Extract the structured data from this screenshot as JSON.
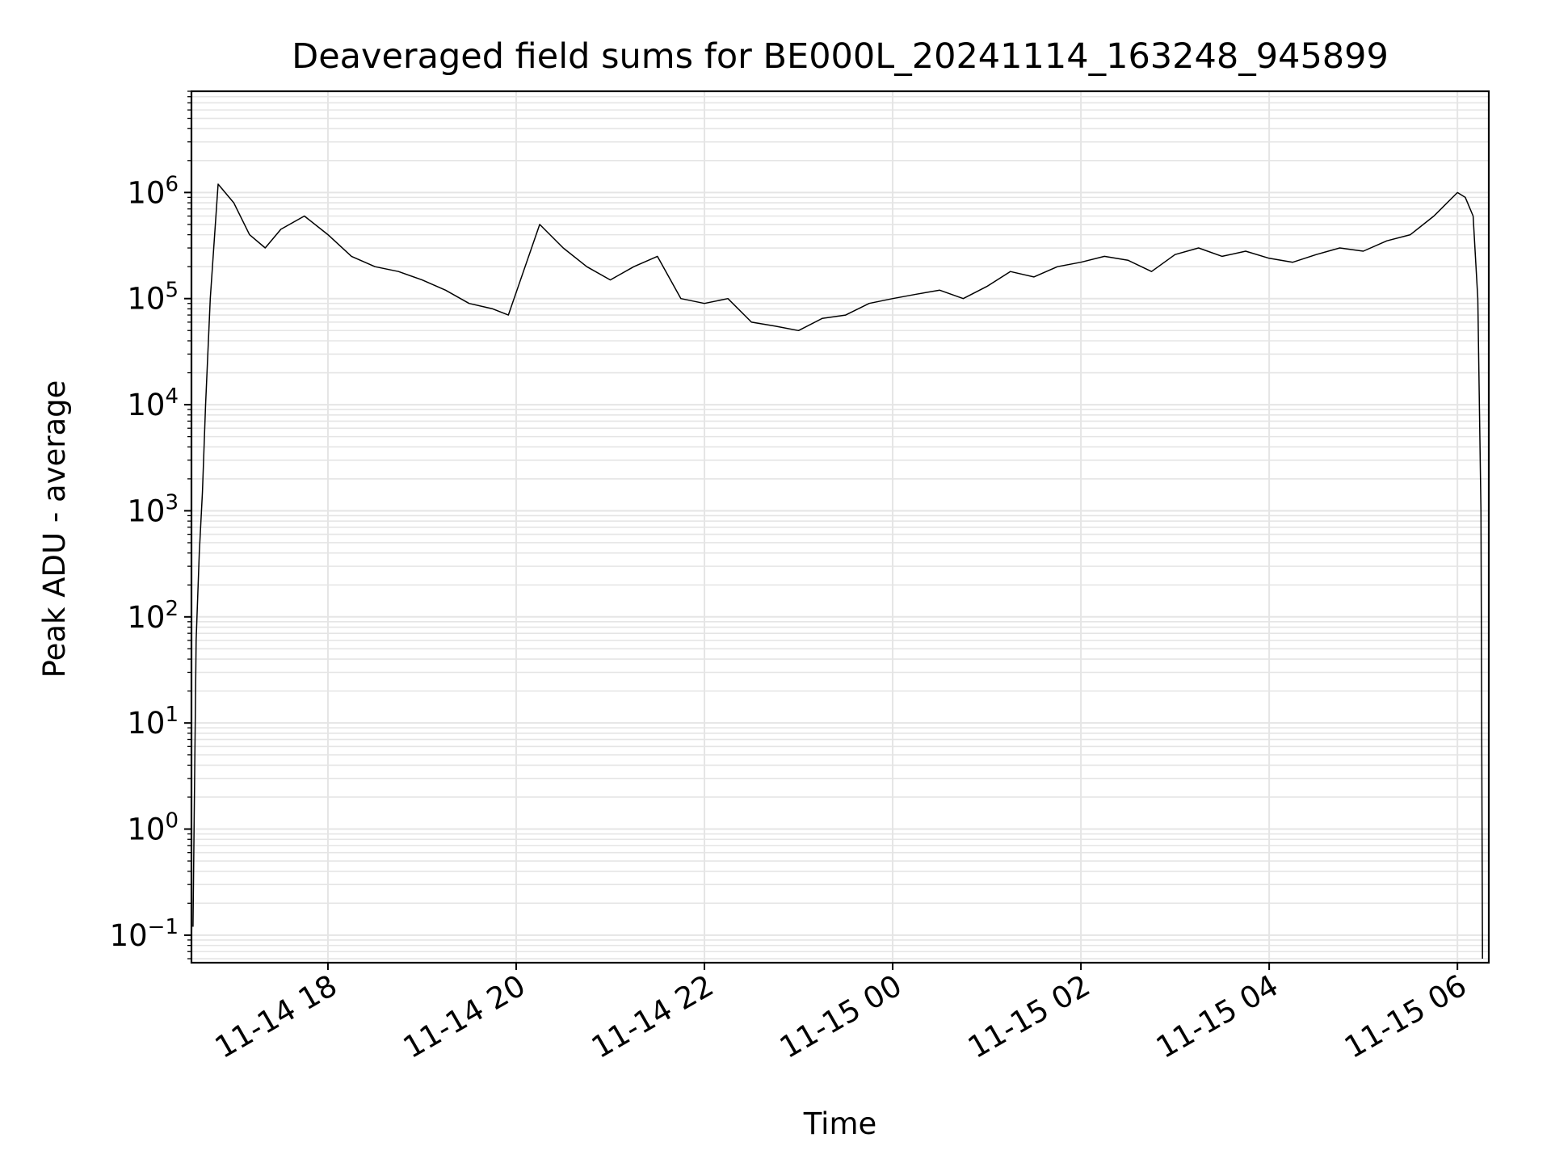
{
  "chart_data": {
    "type": "line",
    "title": "Deaveraged field sums for BE000L_20241114_163248_945899",
    "xlabel": "Time",
    "ylabel": "Peak ADU - average",
    "yscale": "log",
    "ylim": [
      0.055,
      9000000
    ],
    "xlim": [
      "2024-11-14 16:33",
      "2024-11-15 06:20"
    ],
    "grid": true,
    "line_color": "#000000",
    "grid_color": "#e5e5e5",
    "x_ticks": [
      {
        "t": "2024-11-14 18:00",
        "label": "11-14 18"
      },
      {
        "t": "2024-11-14 20:00",
        "label": "11-14 20"
      },
      {
        "t": "2024-11-14 22:00",
        "label": "11-14 22"
      },
      {
        "t": "2024-11-15 00:00",
        "label": "11-15 00"
      },
      {
        "t": "2024-11-15 02:00",
        "label": "11-15 02"
      },
      {
        "t": "2024-11-15 04:00",
        "label": "11-15 04"
      },
      {
        "t": "2024-11-15 06:00",
        "label": "11-15 06"
      }
    ],
    "y_ticks": [
      {
        "value": 0.1,
        "base": "10",
        "exp": "−1"
      },
      {
        "value": 1,
        "base": "10",
        "exp": "0"
      },
      {
        "value": 10,
        "base": "10",
        "exp": "1"
      },
      {
        "value": 100,
        "base": "10",
        "exp": "2"
      },
      {
        "value": 1000,
        "base": "10",
        "exp": "3"
      },
      {
        "value": 10000,
        "base": "10",
        "exp": "4"
      },
      {
        "value": 100000,
        "base": "10",
        "exp": "5"
      },
      {
        "value": 1000000,
        "base": "10",
        "exp": "6"
      }
    ],
    "series": [
      {
        "x": [
          "2024-11-14 16:34",
          "2024-11-14 16:36",
          "2024-11-14 16:38",
          "2024-11-14 16:40",
          "2024-11-14 16:42",
          "2024-11-14 16:45",
          "2024-11-14 16:50",
          "2024-11-14 17:00",
          "2024-11-14 17:10",
          "2024-11-14 17:20",
          "2024-11-14 17:30",
          "2024-11-14 17:45",
          "2024-11-14 18:00",
          "2024-11-14 18:15",
          "2024-11-14 18:30",
          "2024-11-14 18:45",
          "2024-11-14 19:00",
          "2024-11-14 19:15",
          "2024-11-14 19:30",
          "2024-11-14 19:45",
          "2024-11-14 19:55",
          "2024-11-14 20:15",
          "2024-11-14 20:30",
          "2024-11-14 20:45",
          "2024-11-14 21:00",
          "2024-11-14 21:15",
          "2024-11-14 21:30",
          "2024-11-14 21:45",
          "2024-11-14 22:00",
          "2024-11-14 22:15",
          "2024-11-14 22:30",
          "2024-11-14 22:45",
          "2024-11-14 23:00",
          "2024-11-14 23:15",
          "2024-11-14 23:30",
          "2024-11-14 23:45",
          "2024-11-15 00:00",
          "2024-11-15 00:15",
          "2024-11-15 00:30",
          "2024-11-15 00:45",
          "2024-11-15 01:00",
          "2024-11-15 01:15",
          "2024-11-15 01:30",
          "2024-11-15 01:45",
          "2024-11-15 02:00",
          "2024-11-15 02:15",
          "2024-11-15 02:30",
          "2024-11-15 02:45",
          "2024-11-15 03:00",
          "2024-11-15 03:15",
          "2024-11-15 03:30",
          "2024-11-15 03:45",
          "2024-11-15 04:00",
          "2024-11-15 04:15",
          "2024-11-15 04:30",
          "2024-11-15 04:45",
          "2024-11-15 05:00",
          "2024-11-15 05:15",
          "2024-11-15 05:30",
          "2024-11-15 05:45",
          "2024-11-15 06:00",
          "2024-11-15 06:05",
          "2024-11-15 06:10",
          "2024-11-15 06:13",
          "2024-11-15 06:15",
          "2024-11-15 06:16"
        ],
        "y": [
          0.12,
          60,
          400,
          1500,
          10000,
          100000,
          1200000,
          800000,
          400000,
          300000,
          450000,
          600000,
          400000,
          250000,
          200000,
          180000,
          150000,
          120000,
          90000,
          80000,
          70000,
          500000,
          300000,
          200000,
          150000,
          200000,
          250000,
          100000,
          90000,
          100000,
          60000,
          55000,
          50000,
          65000,
          70000,
          90000,
          100000,
          110000,
          120000,
          100000,
          130000,
          180000,
          160000,
          200000,
          220000,
          250000,
          230000,
          180000,
          260000,
          300000,
          250000,
          280000,
          240000,
          220000,
          260000,
          300000,
          280000,
          350000,
          400000,
          600000,
          1000000,
          900000,
          600000,
          100000,
          1000,
          0.06
        ]
      }
    ]
  }
}
